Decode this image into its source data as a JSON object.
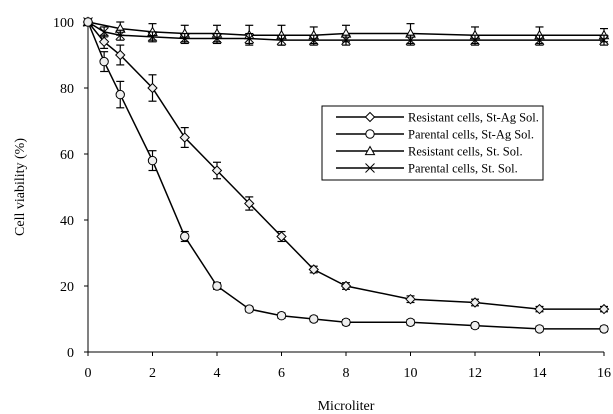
{
  "chart_data": {
    "type": "line",
    "title": "",
    "xlabel": "Microliter",
    "ylabel": "Cell viability (%)",
    "xlim": [
      0,
      16
    ],
    "ylim": [
      0,
      100
    ],
    "xticks": [
      0,
      2,
      4,
      6,
      8,
      10,
      12,
      14,
      16
    ],
    "yticks": [
      0,
      20,
      40,
      60,
      80,
      100
    ],
    "x_tick_labels": [
      "0",
      "2",
      "4",
      "6",
      "8",
      "10",
      "12",
      "14",
      "16"
    ],
    "y_tick_labels": [
      "0",
      "20",
      "40",
      "60",
      "80",
      "100"
    ],
    "grid": false,
    "legend_position": "right-middle",
    "series": [
      {
        "name": "Resistant cells, St-Ag Sol.",
        "marker": "diamond",
        "x": [
          0,
          0.5,
          1,
          2,
          3,
          4,
          5,
          6,
          7,
          8,
          10,
          12,
          14,
          16
        ],
        "y": [
          100,
          94,
          90,
          80,
          65,
          55,
          45,
          35,
          25,
          20,
          16,
          15,
          13,
          13
        ],
        "err": [
          0,
          2,
          3,
          4,
          3,
          2.5,
          2,
          1.5,
          1,
          1,
          1,
          1,
          0.8,
          0.8
        ]
      },
      {
        "name": "Parental cells, St-Ag Sol.",
        "marker": "circle",
        "x": [
          0,
          0.5,
          1,
          2,
          3,
          4,
          5,
          6,
          7,
          8,
          10,
          12,
          14,
          16
        ],
        "y": [
          100,
          88,
          78,
          58,
          35,
          20,
          13,
          11,
          10,
          9,
          9,
          8,
          7,
          7
        ],
        "err": [
          0,
          3,
          4,
          3,
          1.5,
          1,
          0.8,
          0.8,
          0.8,
          0.8,
          0.8,
          0.8,
          0.8,
          0.8
        ]
      },
      {
        "name": "Resistant cells, St. Sol.",
        "marker": "triangle",
        "x": [
          0,
          1,
          2,
          3,
          4,
          5,
          6,
          7,
          8,
          10,
          12,
          14,
          16
        ],
        "y": [
          100,
          98,
          97,
          96.5,
          96.5,
          96,
          96,
          96,
          96.5,
          96.5,
          96,
          96,
          96
        ],
        "err": [
          0,
          2,
          2.5,
          2.5,
          2.5,
          3,
          3,
          2.5,
          2.5,
          3,
          2.5,
          2.5,
          2
        ]
      },
      {
        "name": "Parental cells, St. Sol.",
        "marker": "cross",
        "x": [
          0,
          0.5,
          1,
          2,
          3,
          4,
          5,
          6,
          7,
          8,
          10,
          12,
          14,
          16
        ],
        "y": [
          100,
          97,
          96,
          95.5,
          95,
          95,
          95,
          94.5,
          94.5,
          94.5,
          94.5,
          94.5,
          94.5,
          94.5
        ],
        "err": [
          0,
          1.5,
          1.5,
          1.5,
          1.5,
          1.5,
          1.5,
          1.5,
          1.5,
          1.5,
          1.5,
          1.5,
          1.5,
          1.5
        ]
      }
    ]
  }
}
